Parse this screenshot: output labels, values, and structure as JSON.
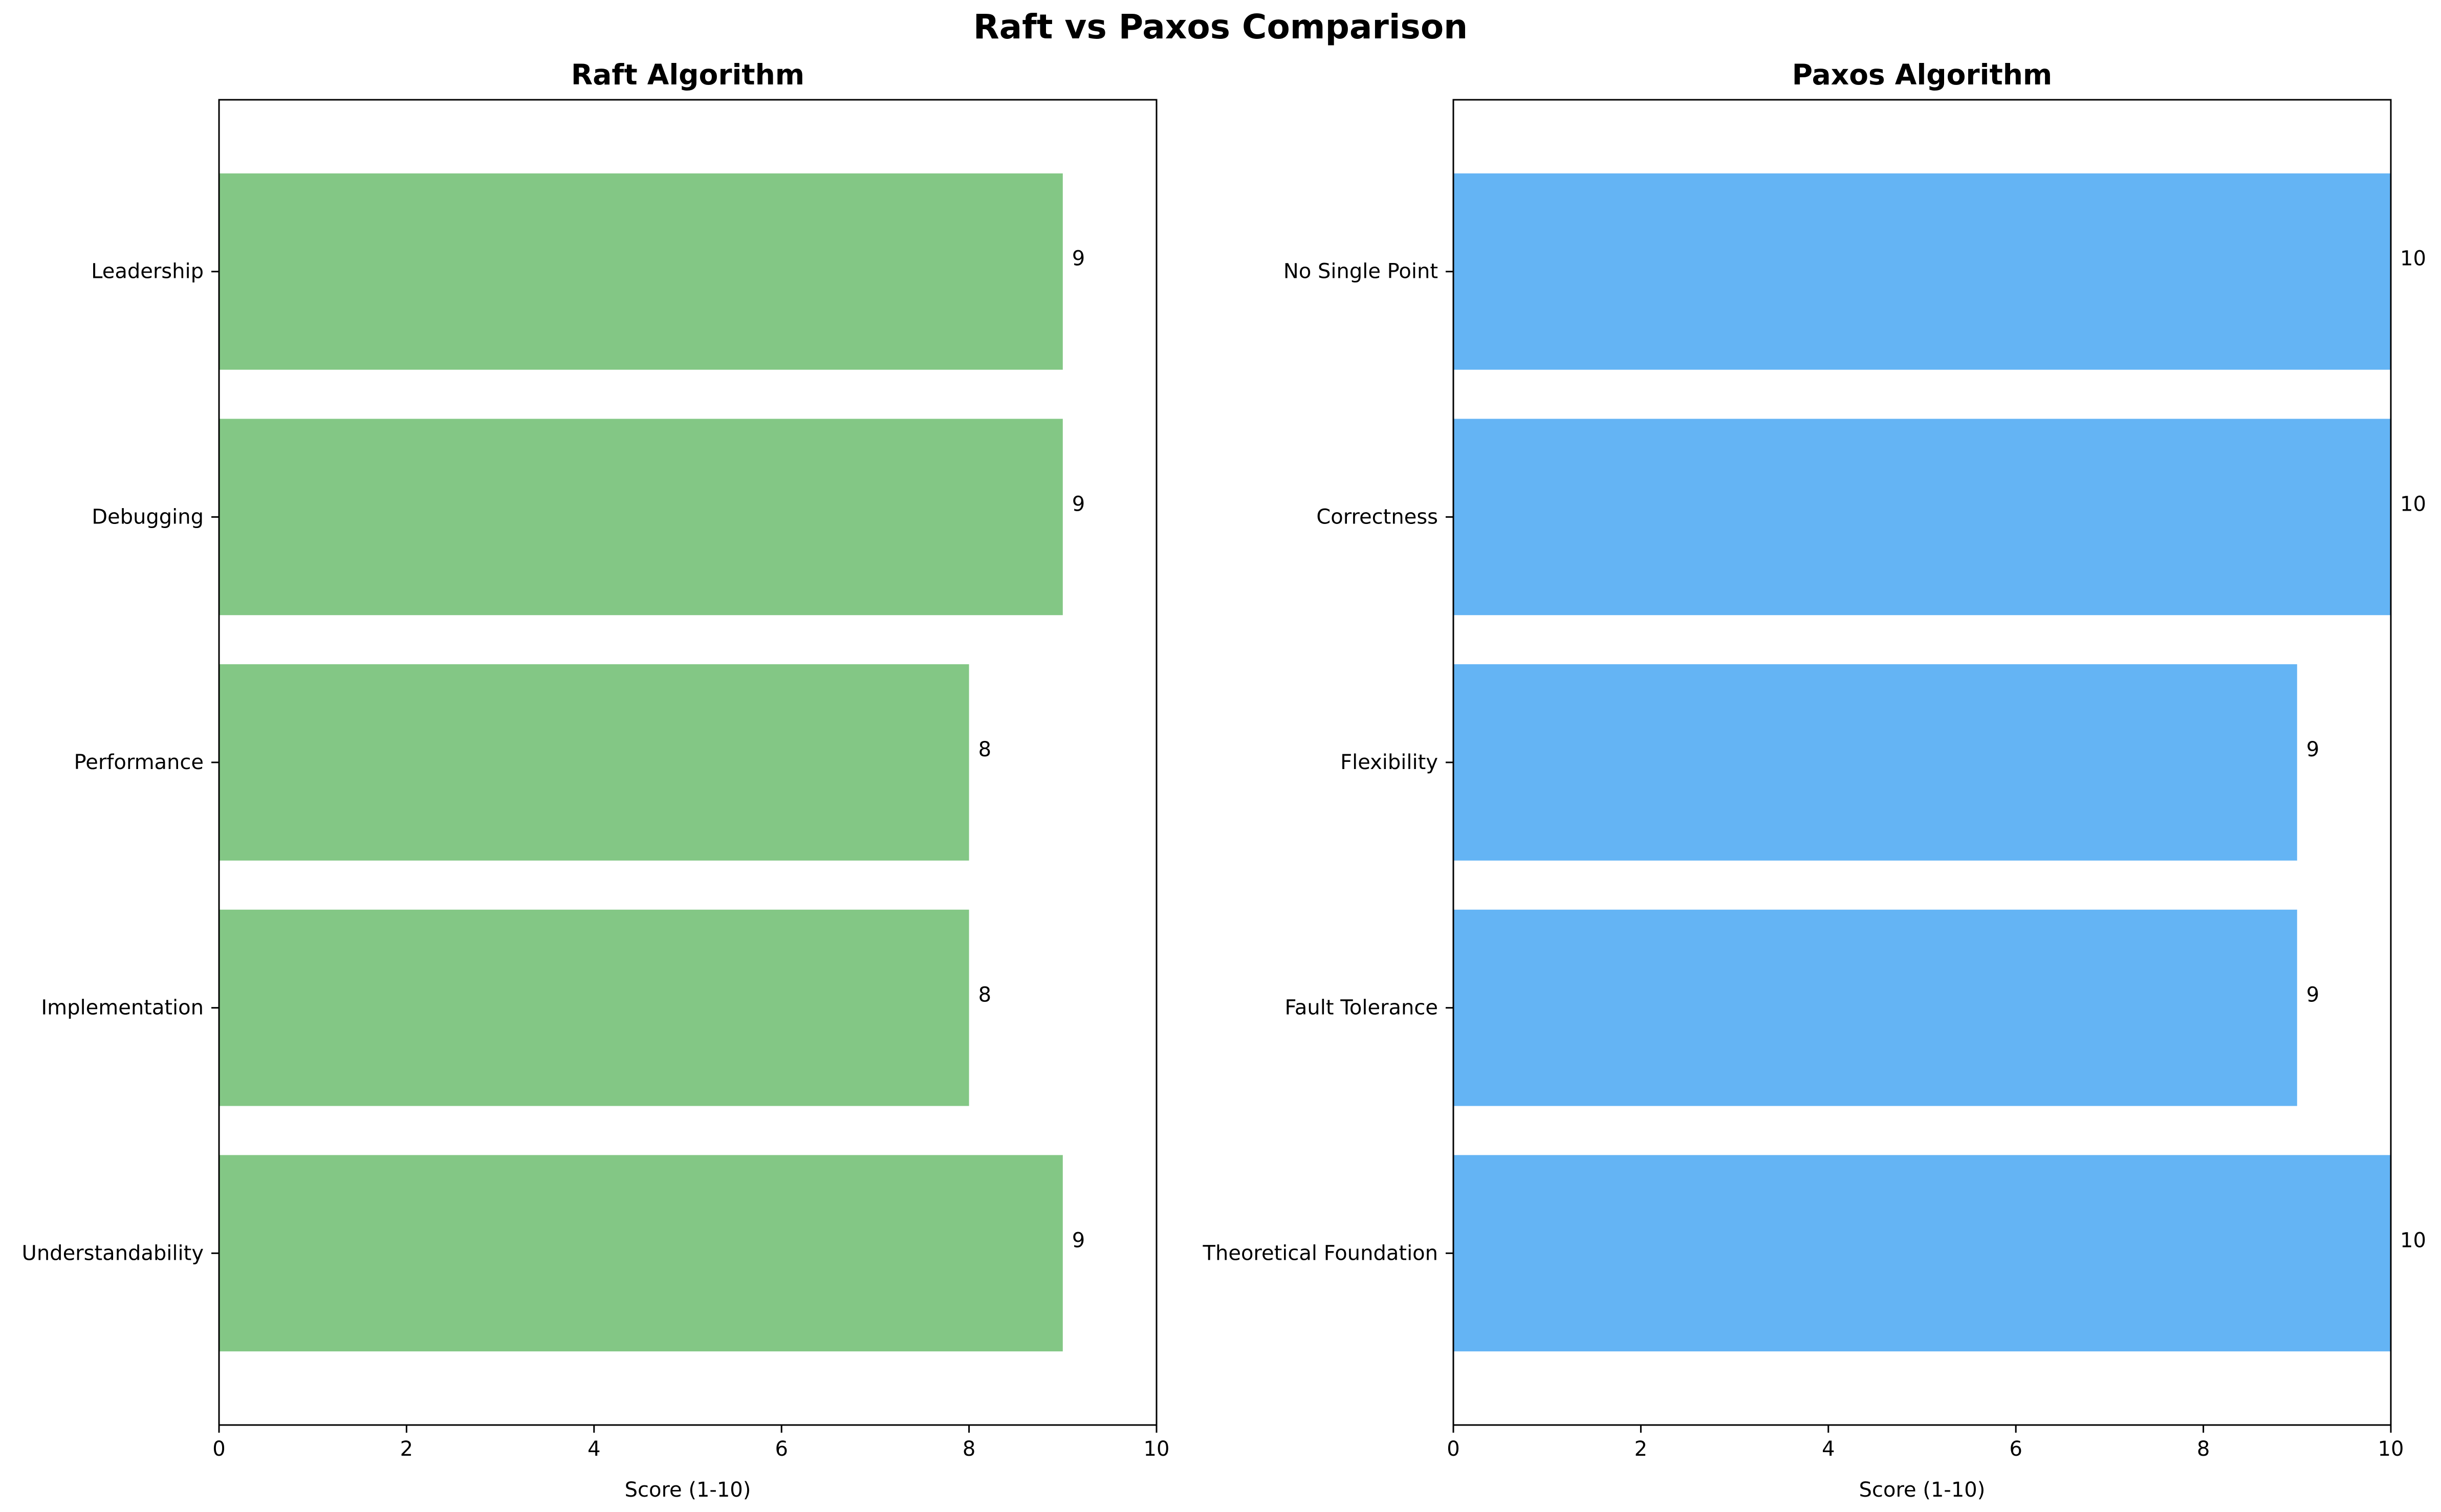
{
  "title": "Raft vs Paxos Comparison",
  "colors": {
    "raft": "#83c785",
    "paxos": "#64b4f4"
  },
  "chart_data": [
    {
      "type": "bar",
      "orientation": "horizontal",
      "title": "Raft Algorithm",
      "xlabel": "Score (1-10)",
      "xlim": [
        0,
        10
      ],
      "xticks": [
        "0",
        "2",
        "4",
        "6",
        "8",
        "10"
      ],
      "categories": [
        "Leadership",
        "Debugging",
        "Performance",
        "Implementation",
        "Understandability"
      ],
      "values": [
        9,
        9,
        8,
        8,
        9
      ],
      "color": "#83c785"
    },
    {
      "type": "bar",
      "orientation": "horizontal",
      "title": "Paxos Algorithm",
      "xlabel": "Score (1-10)",
      "xlim": [
        0,
        10
      ],
      "xticks": [
        "0",
        "2",
        "4",
        "6",
        "8",
        "10"
      ],
      "categories": [
        "No Single Point",
        "Correctness",
        "Flexibility",
        "Fault Tolerance",
        "Theoretical Foundation"
      ],
      "values": [
        10,
        10,
        9,
        9,
        10
      ],
      "color": "#64b4f4"
    }
  ]
}
